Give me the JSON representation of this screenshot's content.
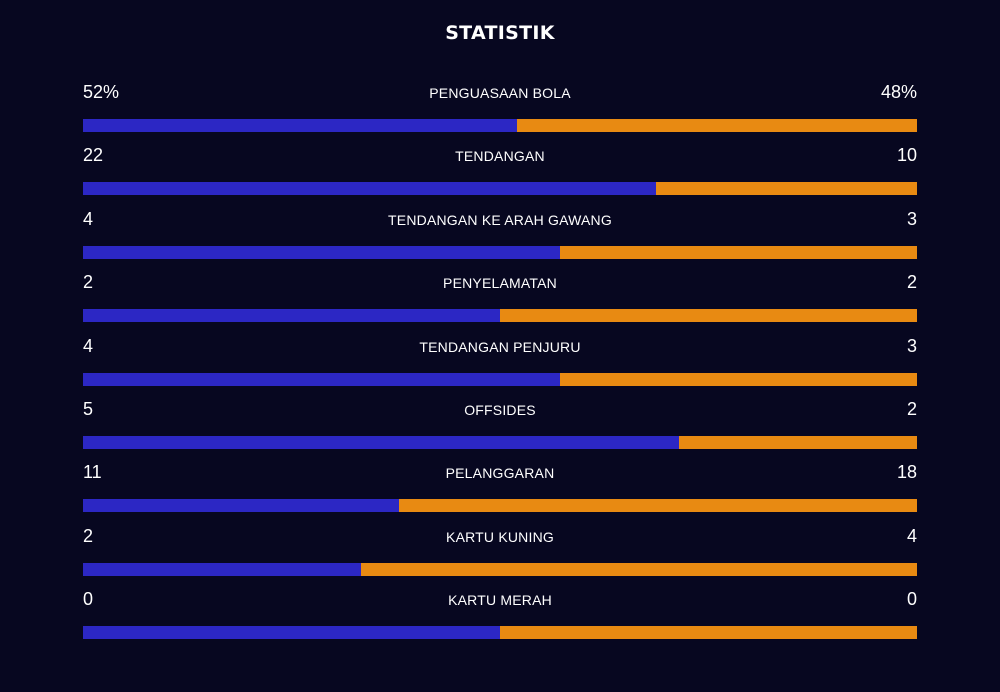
{
  "title": "STATISTIK",
  "colors": {
    "background": "#070720",
    "home": "#2c27c4",
    "away": "#e88a12"
  },
  "stats": [
    {
      "label": "PENGUASAAN BOLA",
      "home": "52%",
      "away": "48%",
      "home_share": 0.52
    },
    {
      "label": "TENDANGAN",
      "home": "22",
      "away": "10",
      "home_share": 0.6875
    },
    {
      "label": "TENDANGAN KE ARAH GAWANG",
      "home": "4",
      "away": "3",
      "home_share": 0.5714
    },
    {
      "label": "PENYELAMATAN",
      "home": "2",
      "away": "2",
      "home_share": 0.5
    },
    {
      "label": "TENDANGAN PENJURU",
      "home": "4",
      "away": "3",
      "home_share": 0.5714
    },
    {
      "label": "OFFSIDES",
      "home": "5",
      "away": "2",
      "home_share": 0.7143
    },
    {
      "label": "PELANGGARAN",
      "home": "11",
      "away": "18",
      "home_share": 0.3793
    },
    {
      "label": "KARTU KUNING",
      "home": "2",
      "away": "4",
      "home_share": 0.3333
    },
    {
      "label": "KARTU MERAH",
      "home": "0",
      "away": "0",
      "home_share": 0.5
    }
  ]
}
